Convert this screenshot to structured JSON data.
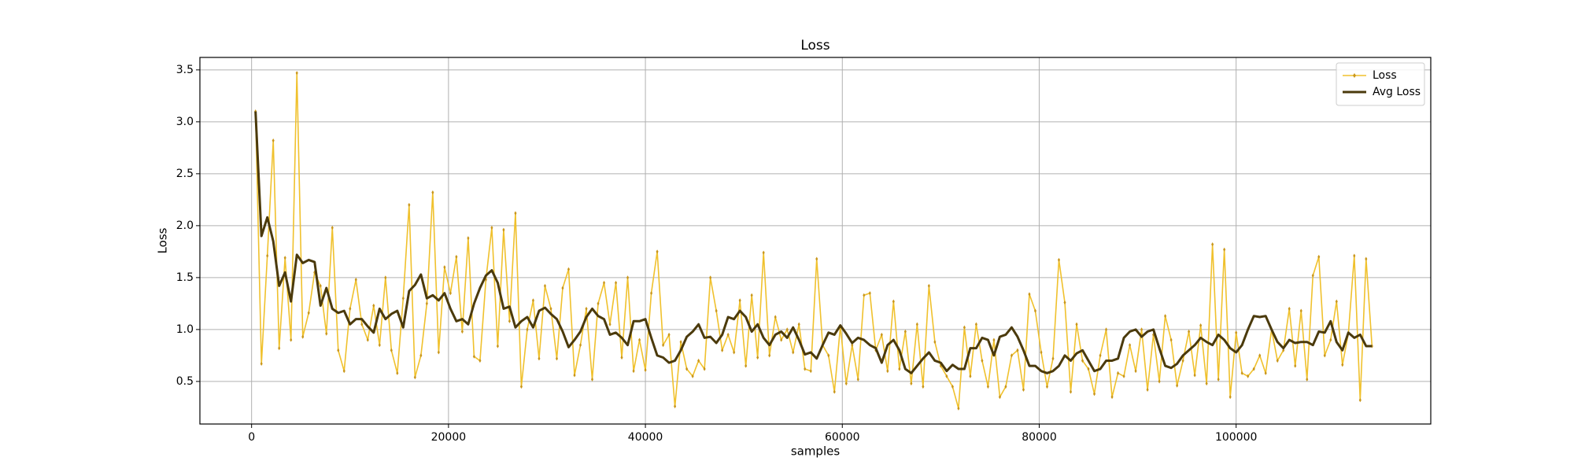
{
  "chart_data": {
    "type": "line",
    "title": "Loss",
    "x_label": "samples",
    "y_label": "Loss",
    "xlim": [
      -5250,
      119770
    ],
    "ylim": [
      0.09,
      3.62
    ],
    "xticks": [
      0,
      20000,
      40000,
      60000,
      80000,
      100000
    ],
    "yticks": [
      0.5,
      {
        "value": 1,
        "label": "1.0"
      },
      1.5,
      {
        "value": 2,
        "label": "2.0"
      },
      2.5,
      {
        "value": 3,
        "label": "3.0"
      },
      3.5
    ],
    "grid": true,
    "legend": "upper right",
    "x": [
      400,
      1000,
      1600,
      2200,
      2800,
      3400,
      4000,
      4600,
      5200,
      5800,
      6400,
      7000,
      7600,
      8200,
      8800,
      9400,
      10000,
      10600,
      11200,
      11800,
      12400,
      13000,
      13600,
      14200,
      14800,
      15400,
      16000,
      16600,
      17200,
      17800,
      18400,
      19000,
      19600,
      20200,
      20800,
      21400,
      22000,
      22600,
      23200,
      23800,
      24400,
      25000,
      25600,
      26200,
      26800,
      27400,
      28000,
      28600,
      29200,
      29800,
      30400,
      31000,
      31600,
      32200,
      32800,
      33400,
      34000,
      34600,
      35200,
      35800,
      36400,
      37000,
      37600,
      38200,
      38800,
      39400,
      40000,
      40600,
      41200,
      41800,
      42400,
      43000,
      43600,
      44200,
      44800,
      45400,
      46000,
      46600,
      47200,
      47800,
      48400,
      49000,
      49600,
      50200,
      50800,
      51400,
      52000,
      52600,
      53200,
      53800,
      54400,
      55000,
      55600,
      56200,
      56800,
      57400,
      58000,
      58600,
      59200,
      59800,
      60400,
      61000,
      61600,
      62200,
      62800,
      63400,
      64000,
      64600,
      65200,
      65800,
      66400,
      67000,
      67600,
      68200,
      68800,
      69400,
      70000,
      70600,
      71200,
      71800,
      72400,
      73000,
      73600,
      74200,
      74800,
      75400,
      76000,
      76600,
      77200,
      77800,
      78400,
      79000,
      79600,
      80200,
      80800,
      81400,
      82000,
      82600,
      83200,
      83800,
      84400,
      85000,
      85600,
      86200,
      86800,
      87400,
      88000,
      88600,
      89200,
      89800,
      90400,
      91000,
      91600,
      92200,
      92800,
      93400,
      94000,
      94600,
      95200,
      95800,
      96400,
      97000,
      97600,
      98200,
      98800,
      99400,
      100000,
      100600,
      101200,
      101800,
      102400,
      103000,
      103600,
      104200,
      104800,
      105400,
      106000,
      106600,
      107200,
      107800,
      108400,
      109000,
      109600,
      110200,
      110800,
      111400,
      112000,
      112600,
      113200,
      113800
    ],
    "series": [
      {
        "name": "Loss",
        "color": "#f0c12d",
        "marker_color": "#c9961a",
        "values": [
          3.1,
          0.67,
          1.71,
          2.82,
          0.82,
          1.69,
          0.9,
          3.47,
          0.93,
          1.16,
          1.55,
          1.42,
          0.96,
          1.98,
          0.8,
          0.6,
          1.2,
          1.48,
          1.05,
          0.9,
          1.23,
          0.85,
          1.5,
          0.8,
          0.58,
          1.3,
          2.2,
          0.54,
          0.75,
          1.25,
          2.32,
          0.78,
          1.6,
          1.35,
          1.7,
          0.98,
          1.88,
          0.74,
          0.7,
          1.48,
          1.98,
          0.84,
          1.96,
          1.08,
          2.12,
          0.45,
          1.0,
          1.28,
          0.72,
          1.42,
          1.2,
          0.72,
          1.4,
          1.58,
          0.56,
          0.85,
          1.2,
          0.52,
          1.25,
          1.45,
          1.05,
          1.45,
          0.73,
          1.5,
          0.6,
          0.9,
          0.61,
          1.35,
          1.75,
          0.85,
          0.95,
          0.26,
          0.88,
          0.62,
          0.55,
          0.7,
          0.62,
          1.5,
          1.18,
          0.8,
          0.95,
          0.78,
          1.28,
          0.65,
          1.33,
          0.73,
          1.74,
          0.75,
          1.12,
          0.9,
          1.0,
          0.78,
          1.05,
          0.62,
          0.6,
          1.68,
          0.85,
          0.75,
          0.4,
          1.03,
          0.48,
          0.85,
          0.52,
          1.33,
          1.35,
          0.8,
          0.95,
          0.6,
          1.27,
          0.62,
          0.98,
          0.48,
          1.05,
          0.45,
          1.42,
          0.88,
          0.65,
          0.55,
          0.45,
          0.24,
          1.02,
          0.55,
          1.05,
          0.7,
          0.45,
          0.9,
          0.35,
          0.45,
          0.75,
          0.8,
          0.42,
          1.34,
          1.18,
          0.78,
          0.45,
          0.72,
          1.67,
          1.26,
          0.4,
          1.05,
          0.7,
          0.62,
          0.38,
          0.75,
          1.0,
          0.35,
          0.58,
          0.55,
          0.85,
          0.6,
          1.0,
          0.42,
          0.95,
          0.5,
          1.13,
          0.9,
          0.46,
          0.7,
          0.98,
          0.56,
          1.04,
          0.48,
          1.82,
          0.52,
          1.77,
          0.35,
          0.97,
          0.58,
          0.55,
          0.62,
          0.75,
          0.58,
          1.0,
          0.7,
          0.8,
          1.2,
          0.65,
          1.18,
          0.52,
          1.52,
          1.7,
          0.75,
          0.9,
          1.27,
          0.66,
          0.96,
          1.71,
          0.32,
          1.68,
          0.84
        ]
      },
      {
        "name": "Avg Loss",
        "color": "#4b3a0c",
        "values": [
          3.1,
          1.9,
          2.08,
          1.85,
          1.42,
          1.55,
          1.27,
          1.72,
          1.64,
          1.67,
          1.65,
          1.23,
          1.4,
          1.2,
          1.16,
          1.18,
          1.05,
          1.1,
          1.1,
          1.03,
          0.97,
          1.2,
          1.1,
          1.15,
          1.18,
          1.02,
          1.37,
          1.43,
          1.53,
          1.3,
          1.33,
          1.28,
          1.35,
          1.2,
          1.08,
          1.1,
          1.05,
          1.25,
          1.4,
          1.52,
          1.57,
          1.45,
          1.2,
          1.22,
          1.02,
          1.08,
          1.12,
          1.02,
          1.18,
          1.21,
          1.15,
          1.1,
          0.98,
          0.83,
          0.9,
          0.98,
          1.12,
          1.2,
          1.13,
          1.1,
          0.95,
          0.97,
          0.92,
          0.85,
          1.08,
          1.08,
          1.1,
          0.92,
          0.75,
          0.73,
          0.68,
          0.7,
          0.8,
          0.93,
          0.98,
          1.05,
          0.92,
          0.93,
          0.87,
          0.95,
          1.12,
          1.1,
          1.18,
          1.12,
          0.98,
          1.05,
          0.92,
          0.85,
          0.95,
          0.98,
          0.92,
          1.02,
          0.9,
          0.76,
          0.78,
          0.72,
          0.85,
          0.97,
          0.95,
          1.04,
          0.96,
          0.87,
          0.92,
          0.9,
          0.85,
          0.82,
          0.68,
          0.85,
          0.9,
          0.8,
          0.62,
          0.58,
          0.65,
          0.72,
          0.78,
          0.7,
          0.68,
          0.6,
          0.66,
          0.62,
          0.62,
          0.82,
          0.82,
          0.92,
          0.9,
          0.75,
          0.93,
          0.95,
          1.02,
          0.93,
          0.8,
          0.65,
          0.65,
          0.6,
          0.58,
          0.6,
          0.65,
          0.75,
          0.7,
          0.77,
          0.8,
          0.7,
          0.6,
          0.62,
          0.7,
          0.7,
          0.72,
          0.92,
          0.98,
          1.0,
          0.93,
          0.98,
          1.0,
          0.82,
          0.65,
          0.63,
          0.67,
          0.75,
          0.8,
          0.85,
          0.92,
          0.88,
          0.85,
          0.95,
          0.9,
          0.82,
          0.78,
          0.85,
          1.0,
          1.13,
          1.12,
          1.13,
          1.0,
          0.88,
          0.82,
          0.9,
          0.87,
          0.88,
          0.88,
          0.85,
          0.98,
          0.97,
          1.08,
          0.88,
          0.8,
          0.97,
          0.92,
          0.95,
          0.84,
          0.84
        ]
      }
    ]
  }
}
